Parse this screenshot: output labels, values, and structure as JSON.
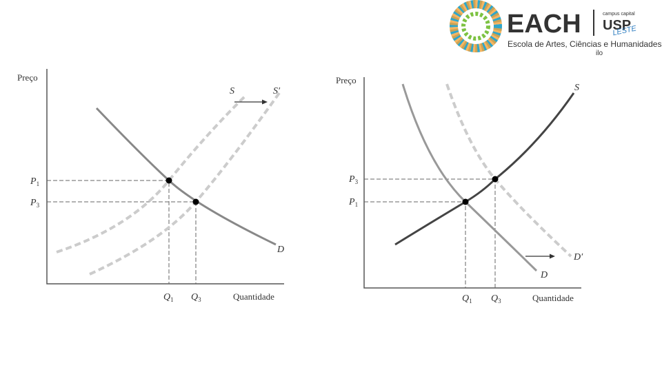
{
  "logo": {
    "name": "EACH",
    "campus": "campus capital",
    "usp": "USP",
    "leste": "LESTE",
    "school": "Escola de Artes, Ciências e Humanidades",
    "fragment": "ilo"
  },
  "diagrams": [
    {
      "y_axis": "Preço",
      "x_axis": "Quantidade",
      "curves": [
        "S",
        "S′",
        "D"
      ],
      "price_labels": [
        {
          "letter": "P",
          "sub": "1"
        },
        {
          "letter": "P",
          "sub": "3"
        }
      ],
      "quantity_labels": [
        {
          "letter": "Q",
          "sub": "1"
        },
        {
          "letter": "Q",
          "sub": "3"
        }
      ]
    },
    {
      "y_axis": "Preço",
      "x_axis": "Quantidade",
      "curves": [
        "S",
        "D",
        "D′"
      ],
      "price_labels": [
        {
          "letter": "P",
          "sub": "3"
        },
        {
          "letter": "P",
          "sub": "1"
        }
      ],
      "quantity_labels": [
        {
          "letter": "Q",
          "sub": "1"
        },
        {
          "letter": "Q",
          "sub": "3"
        }
      ]
    }
  ]
}
